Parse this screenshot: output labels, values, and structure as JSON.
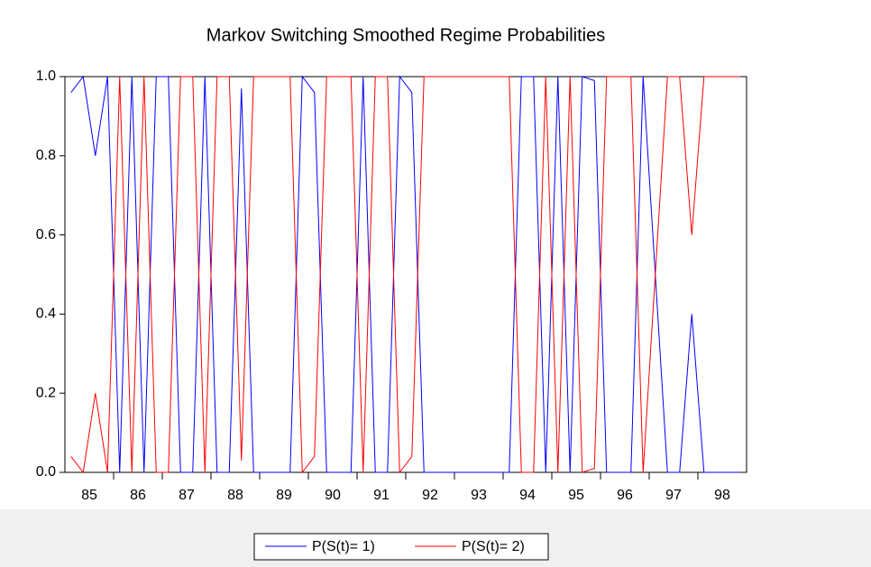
{
  "chart_data": {
    "type": "line",
    "title": "Markov Switching Smoothed Regime Probabilities",
    "x_labels": [
      "85",
      "86",
      "87",
      "88",
      "89",
      "90",
      "91",
      "92",
      "93",
      "94",
      "95",
      "96",
      "97",
      "98"
    ],
    "periods_per_label": 4,
    "series": [
      {
        "name": "P(S(t)= 1)",
        "color": "#0000ff",
        "values": [
          0.96,
          1.0,
          0.8,
          1.0,
          0.0,
          1.0,
          0.0,
          1.0,
          1.0,
          0.0,
          0.0,
          1.0,
          0.0,
          0.0,
          0.97,
          0.0,
          0.0,
          0.0,
          0.0,
          1.0,
          0.96,
          0.0,
          0.0,
          0.0,
          1.0,
          0.0,
          0.0,
          1.0,
          0.96,
          0.0,
          0.0,
          0.0,
          0.0,
          0.0,
          0.0,
          0.0,
          0.0,
          1.0,
          1.0,
          0.0,
          1.0,
          0.0,
          1.0,
          0.99,
          0.0,
          0.0,
          0.0,
          1.0,
          0.5,
          0.0,
          0.0,
          0.4,
          0.0,
          0.0,
          0.0,
          0.0
        ]
      },
      {
        "name": "P(S(t)= 2)",
        "color": "#ff0000",
        "values": [
          0.04,
          0.0,
          0.2,
          0.0,
          1.0,
          0.0,
          1.0,
          0.0,
          0.0,
          1.0,
          1.0,
          0.0,
          1.0,
          1.0,
          0.03,
          1.0,
          1.0,
          1.0,
          1.0,
          0.0,
          0.04,
          1.0,
          1.0,
          1.0,
          0.0,
          1.0,
          1.0,
          0.0,
          0.04,
          1.0,
          1.0,
          1.0,
          1.0,
          1.0,
          1.0,
          1.0,
          1.0,
          0.0,
          0.0,
          1.0,
          0.0,
          1.0,
          0.0,
          0.01,
          1.0,
          1.0,
          1.0,
          0.0,
          0.5,
          1.0,
          1.0,
          0.6,
          1.0,
          1.0,
          1.0,
          1.0
        ]
      }
    ],
    "ylim": [
      0,
      1
    ],
    "yticks": [
      {
        "value": 0,
        "label": "0.0"
      },
      0.2,
      0.4,
      0.6,
      0.8,
      {
        "value": 1,
        "label": "1.0"
      }
    ]
  }
}
